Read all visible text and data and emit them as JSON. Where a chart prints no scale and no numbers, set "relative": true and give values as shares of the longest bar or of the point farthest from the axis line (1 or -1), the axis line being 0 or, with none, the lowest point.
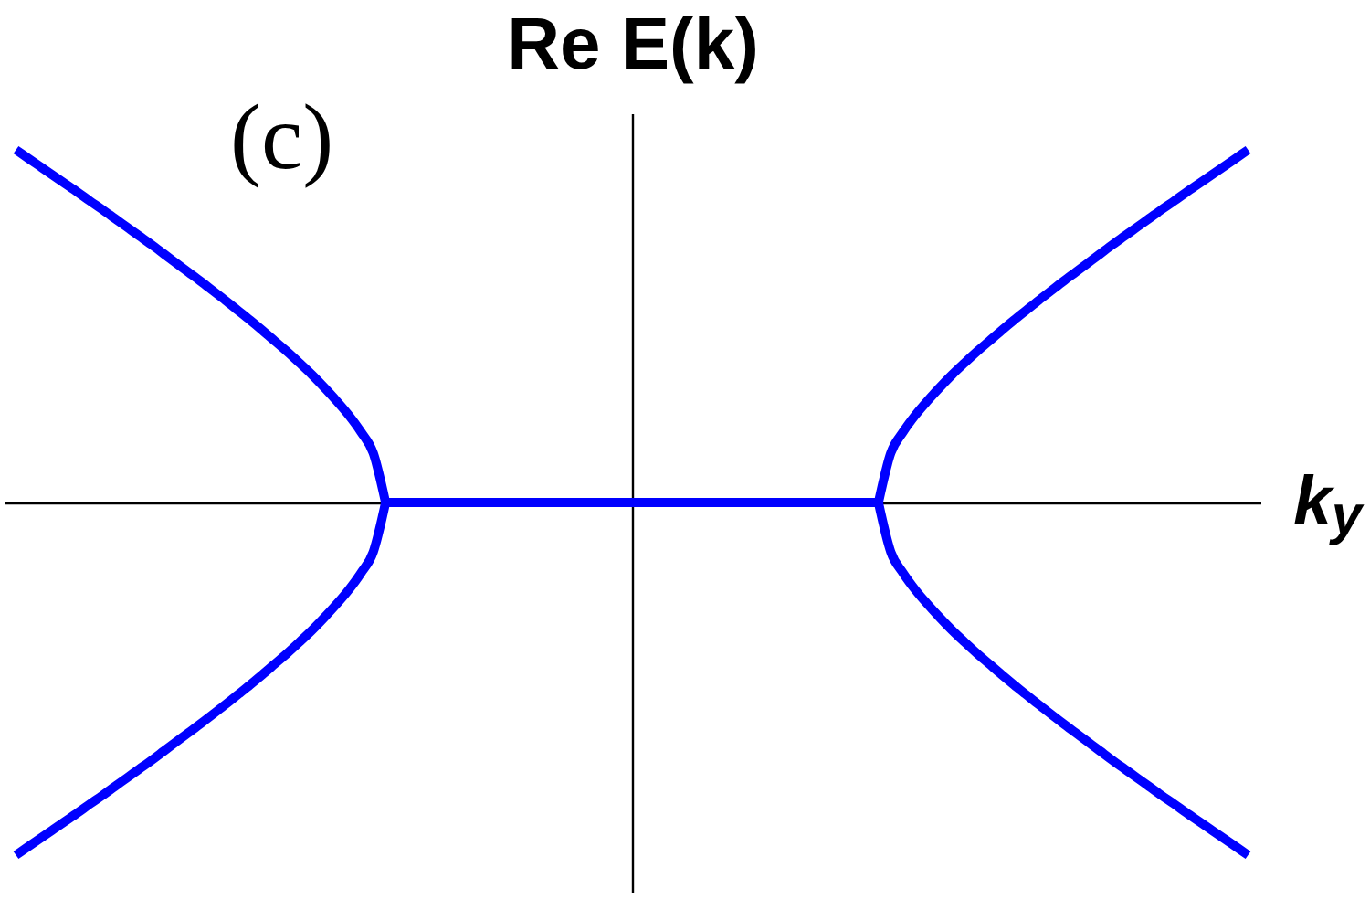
{
  "chart_data": {
    "type": "line",
    "ylabel": "Re E(k)",
    "xlabel": "k$_{y}$",
    "annotations": [
      "(c)"
    ],
    "relative": true,
    "line_style": "solid",
    "categories": [
      null,
      null,
      null,
      null,
      null,
      null,
      null,
      null,
      null,
      null,
      null,
      null,
      null,
      null,
      null,
      null,
      null,
      null,
      null,
      null,
      null,
      null,
      null,
      null,
      null,
      null,
      null,
      null,
      null,
      null,
      null,
      null,
      null,
      null,
      null,
      null,
      null,
      null,
      null,
      null,
      null,
      null,
      null,
      null,
      null,
      null,
      null,
      null,
      null,
      null,
      null,
      null,
      null,
      null,
      null,
      null,
      null,
      null,
      null,
      null,
      null,
      null,
      null,
      null,
      null,
      null,
      null,
      null,
      null,
      null,
      null,
      null,
      null,
      null,
      null,
      null,
      null,
      null,
      null,
      null,
      null,
      null,
      null,
      null,
      null,
      null,
      null,
      null,
      null,
      null,
      null,
      null,
      null,
      null,
      null,
      null,
      null,
      null,
      null,
      null,
      null
    ],
    "series": [
      {
        "color": "#0000ff",
        "values": [
          1,
          0.976,
          0.952,
          0.928,
          0.904,
          0.88,
          0.855,
          0.831,
          0.806,
          0.781,
          0.756,
          0.731,
          0.705,
          0.679,
          0.653,
          0.627,
          0.6,
          0.573,
          0.545,
          0.517,
          0.488,
          0.458,
          0.428,
          0.396,
          0.363,
          0.327,
          0.289,
          0.248,
          0.2,
          0.14,
          0,
          null,
          null,
          null,
          null,
          null,
          null,
          null,
          null,
          null,
          null,
          null,
          null,
          null,
          null,
          null,
          null,
          null,
          null,
          null,
          null,
          null,
          null,
          null,
          null,
          null,
          null,
          null,
          null,
          null,
          null,
          null,
          null,
          null,
          null,
          null,
          null,
          null,
          null,
          null,
          null,
          null,
          null,
          null,
          null,
          null,
          null,
          null,
          null,
          null,
          null,
          null,
          null,
          null,
          null,
          null,
          null,
          null,
          null,
          null,
          null,
          null,
          null,
          null,
          null,
          null,
          null,
          null,
          null,
          null,
          null
        ]
      },
      {
        "color": "#0000ff",
        "values": [
          -1,
          -0.976,
          -0.952,
          -0.928,
          -0.904,
          -0.88,
          -0.855,
          -0.831,
          -0.806,
          -0.781,
          -0.756,
          -0.731,
          -0.705,
          -0.679,
          -0.653,
          -0.627,
          -0.6,
          -0.573,
          -0.545,
          -0.517,
          -0.488,
          -0.458,
          -0.428,
          -0.396,
          -0.363,
          -0.327,
          -0.289,
          -0.248,
          -0.2,
          -0.14,
          0,
          null,
          null,
          null,
          null,
          null,
          null,
          null,
          null,
          null,
          null,
          null,
          null,
          null,
          null,
          null,
          null,
          null,
          null,
          null,
          null,
          null,
          null,
          null,
          null,
          null,
          null,
          null,
          null,
          null,
          null,
          null,
          null,
          null,
          null,
          null,
          null,
          null,
          null,
          null,
          null,
          null,
          null,
          null,
          null,
          null,
          null,
          null,
          null,
          null,
          null,
          null,
          null,
          null,
          null,
          null,
          null,
          null,
          null,
          null,
          null,
          null,
          null,
          null,
          null,
          null,
          null,
          null,
          null,
          null,
          null
        ]
      },
      {
        "color": "#0000ff",
        "values": [
          null,
          null,
          null,
          null,
          null,
          null,
          null,
          null,
          null,
          null,
          null,
          null,
          null,
          null,
          null,
          null,
          null,
          null,
          null,
          null,
          null,
          null,
          null,
          null,
          null,
          null,
          null,
          null,
          null,
          null,
          0,
          0,
          0,
          0,
          0,
          0,
          0,
          0,
          0,
          0,
          0,
          0,
          0,
          0,
          0,
          0,
          0,
          0,
          0,
          0,
          0,
          0,
          0,
          0,
          0,
          0,
          0,
          0,
          0,
          0,
          0,
          0,
          0,
          0,
          0,
          0,
          0,
          0,
          0,
          0,
          0,
          null,
          null,
          null,
          null,
          null,
          null,
          null,
          null,
          null,
          null,
          null,
          null,
          null,
          null,
          null,
          null,
          null,
          null,
          null,
          null,
          null,
          null,
          null,
          null,
          null,
          null,
          null,
          null,
          null,
          null
        ]
      },
      {
        "color": "#0000ff",
        "values": [
          null,
          null,
          null,
          null,
          null,
          null,
          null,
          null,
          null,
          null,
          null,
          null,
          null,
          null,
          null,
          null,
          null,
          null,
          null,
          null,
          null,
          null,
          null,
          null,
          null,
          null,
          null,
          null,
          null,
          null,
          null,
          null,
          null,
          null,
          null,
          null,
          null,
          null,
          null,
          null,
          null,
          null,
          null,
          null,
          null,
          null,
          null,
          null,
          null,
          null,
          null,
          null,
          null,
          null,
          null,
          null,
          null,
          null,
          null,
          null,
          null,
          null,
          null,
          null,
          null,
          null,
          null,
          null,
          null,
          null,
          0,
          0.14,
          0.2,
          0.248,
          0.289,
          0.327,
          0.363,
          0.396,
          0.428,
          0.458,
          0.488,
          0.517,
          0.545,
          0.573,
          0.6,
          0.627,
          0.653,
          0.679,
          0.705,
          0.731,
          0.756,
          0.781,
          0.806,
          0.831,
          0.855,
          0.88,
          0.904,
          0.928,
          0.952,
          0.976,
          1
        ]
      },
      {
        "color": "#0000ff",
        "values": [
          null,
          null,
          null,
          null,
          null,
          null,
          null,
          null,
          null,
          null,
          null,
          null,
          null,
          null,
          null,
          null,
          null,
          null,
          null,
          null,
          null,
          null,
          null,
          null,
          null,
          null,
          null,
          null,
          null,
          null,
          null,
          null,
          null,
          null,
          null,
          null,
          null,
          null,
          null,
          null,
          null,
          null,
          null,
          null,
          null,
          null,
          null,
          null,
          null,
          null,
          null,
          null,
          null,
          null,
          null,
          null,
          null,
          null,
          null,
          null,
          null,
          null,
          null,
          null,
          null,
          null,
          null,
          null,
          null,
          null,
          0,
          -0.14,
          -0.2,
          -0.248,
          -0.289,
          -0.327,
          -0.363,
          -0.396,
          -0.428,
          -0.458,
          -0.488,
          -0.517,
          -0.545,
          -0.573,
          -0.6,
          -0.627,
          -0.653,
          -0.679,
          -0.705,
          -0.731,
          -0.756,
          -0.781,
          -0.806,
          -0.831,
          -0.855,
          -0.88,
          -0.904,
          -0.928,
          -0.952,
          -0.976,
          -1
        ]
      }
    ]
  }
}
